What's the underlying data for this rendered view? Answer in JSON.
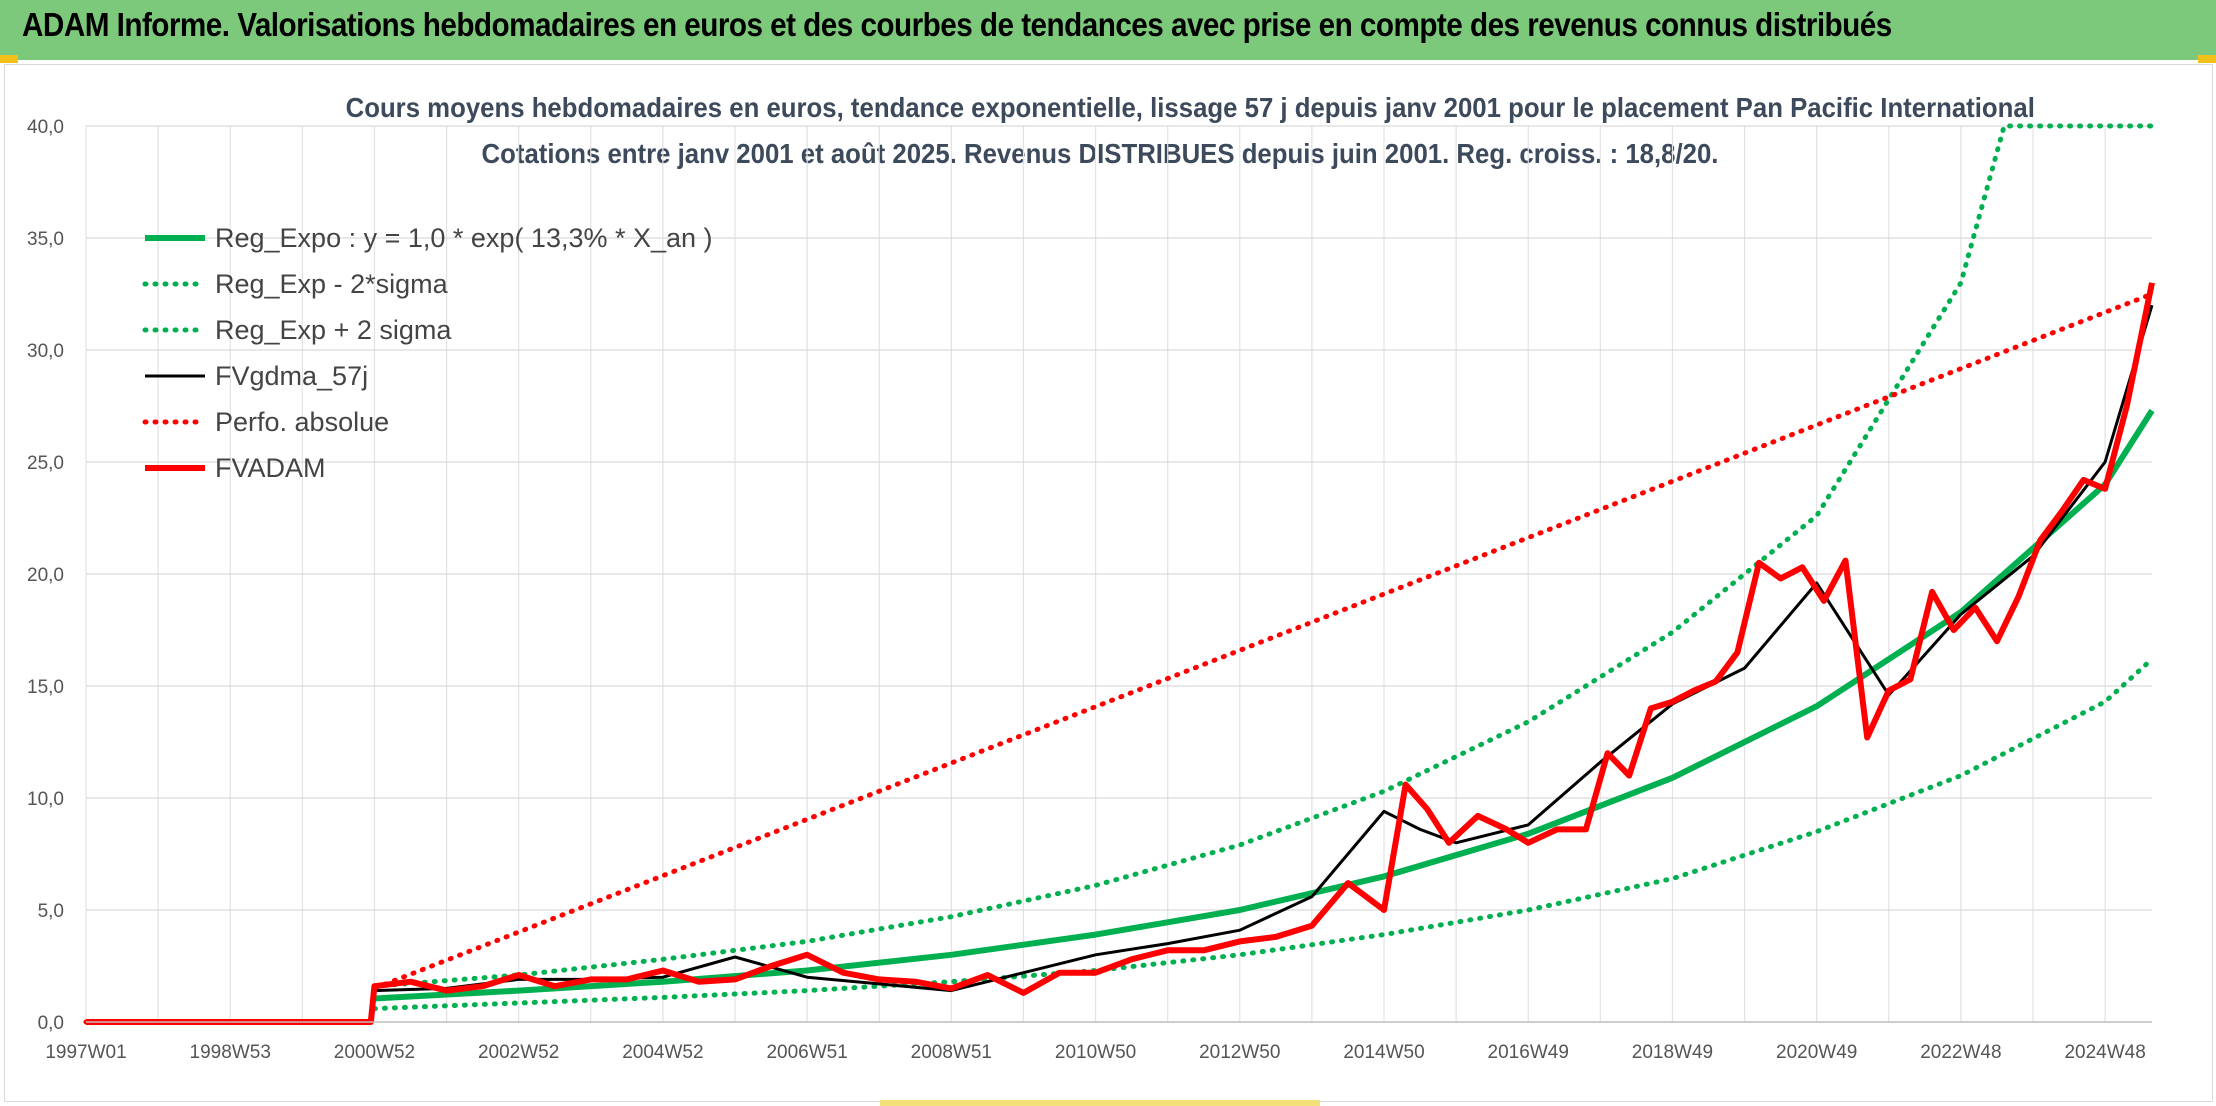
{
  "header": {
    "banner_title": "ADAM Informe. Valorisations hebdomadaires en euros et des courbes de tendances avec prise en compte des revenus connus distribués"
  },
  "colors": {
    "banner": "#7dc97b",
    "reg_expo": "#00b050",
    "fvgdma": "#000000",
    "fvadam": "#ff0000",
    "grid": "#d9d9d9"
  },
  "chart_data": {
    "type": "line",
    "title_line1": "Cours moyens hebdomadaires en euros, tendance exponentielle, lissage 57 j depuis janv 2001 pour le placement Pan Pacific International",
    "title_line2": "Cotations entre janv 2001 et août 2025. Revenus DISTRIBUES depuis juin 2001. Reg. croiss. : 18,8/20.",
    "xlabel": "",
    "ylabel": "",
    "ylim": [
      0,
      40
    ],
    "y_ticks": [
      "0,0",
      "5,0",
      "10,0",
      "15,0",
      "20,0",
      "25,0",
      "30,0",
      "35,0",
      "40,0"
    ],
    "x_range_years": [
      1997.0,
      2025.65
    ],
    "x_ticks": [
      {
        "label": "1997W01",
        "year": 1997.0
      },
      {
        "label": "1998W53",
        "year": 1999.0
      },
      {
        "label": "2000W52",
        "year": 2001.0
      },
      {
        "label": "2002W52",
        "year": 2003.0
      },
      {
        "label": "2004W52",
        "year": 2005.0
      },
      {
        "label": "2006W51",
        "year": 2007.0
      },
      {
        "label": "2008W51",
        "year": 2009.0
      },
      {
        "label": "2010W50",
        "year": 2011.0
      },
      {
        "label": "2012W50",
        "year": 2013.0
      },
      {
        "label": "2014W50",
        "year": 2015.0
      },
      {
        "label": "2016W49",
        "year": 2017.0
      },
      {
        "label": "2018W49",
        "year": 2019.0
      },
      {
        "label": "2020W49",
        "year": 2021.0
      },
      {
        "label": "2022W48",
        "year": 2023.0
      },
      {
        "label": "2024W48",
        "year": 2025.0
      }
    ],
    "grid": true,
    "legend_position": "top-left",
    "series": [
      {
        "name": "Reg_Expo : y = 1,0 * exp( 13,3% *  X_an )",
        "style": "solid-thick",
        "color": "#00b050",
        "x": [
          2001.0,
          2003.0,
          2005.0,
          2007.0,
          2009.0,
          2011.0,
          2013.0,
          2015.0,
          2017.0,
          2019.0,
          2021.0,
          2023.0,
          2025.0,
          2025.65
        ],
        "values": [
          1.05,
          1.4,
          1.8,
          2.3,
          3.0,
          3.9,
          5.0,
          6.5,
          8.4,
          10.9,
          14.1,
          18.3,
          24.0,
          27.3
        ]
      },
      {
        "name": "Reg_Exp - 2*sigma",
        "style": "dotted",
        "color": "#00b050",
        "x": [
          2001.0,
          2003.0,
          2005.0,
          2007.0,
          2009.0,
          2011.0,
          2013.0,
          2015.0,
          2017.0,
          2019.0,
          2021.0,
          2023.0,
          2025.0,
          2025.65
        ],
        "values": [
          0.6,
          0.85,
          1.1,
          1.4,
          1.8,
          2.3,
          3.0,
          3.9,
          5.0,
          6.4,
          8.5,
          11.0,
          14.3,
          16.2
        ]
      },
      {
        "name": "Reg_Exp + 2 sigma",
        "style": "dotted",
        "color": "#00b050",
        "x": [
          2001.0,
          2003.0,
          2005.0,
          2007.0,
          2009.0,
          2011.0,
          2013.0,
          2015.0,
          2017.0,
          2019.0,
          2021.0,
          2023.0,
          2023.6,
          2025.65
        ],
        "values": [
          1.6,
          2.1,
          2.8,
          3.6,
          4.7,
          6.1,
          7.9,
          10.3,
          13.4,
          17.4,
          22.6,
          33.0,
          40.0,
          40.0
        ]
      },
      {
        "name": "FVgdma_57j",
        "style": "solid",
        "color": "#000000",
        "x": [
          2001.0,
          2002.0,
          2003.0,
          2004.0,
          2005.0,
          2006.0,
          2007.0,
          2008.0,
          2009.0,
          2010.0,
          2011.0,
          2012.0,
          2013.0,
          2014.0,
          2015.0,
          2015.5,
          2016.0,
          2017.0,
          2018.0,
          2019.0,
          2020.0,
          2021.0,
          2022.0,
          2023.0,
          2024.0,
          2025.0,
          2025.65
        ],
        "values": [
          1.4,
          1.5,
          1.9,
          1.9,
          2.0,
          2.9,
          2.0,
          1.7,
          1.4,
          2.2,
          3.0,
          3.5,
          4.1,
          5.6,
          9.4,
          8.6,
          8.0,
          8.8,
          11.6,
          14.2,
          15.8,
          19.6,
          14.6,
          18.2,
          20.8,
          25.0,
          32.0
        ]
      },
      {
        "name": "Perfo. absolue",
        "style": "dotted",
        "color": "#ff0000",
        "x": [
          1997.0,
          2000.95,
          2001.0,
          2025.65
        ],
        "values": [
          0.0,
          0.0,
          1.5,
          32.5
        ]
      },
      {
        "name": "FVADAM",
        "style": "solid-thick",
        "color": "#ff0000",
        "x": [
          1997.0,
          2000.95,
          2001.0,
          2001.5,
          2002.0,
          2002.5,
          2003.0,
          2003.5,
          2004.0,
          2004.5,
          2005.0,
          2005.5,
          2006.0,
          2006.5,
          2007.0,
          2007.5,
          2008.0,
          2008.5,
          2009.0,
          2009.5,
          2010.0,
          2010.5,
          2011.0,
          2011.5,
          2012.0,
          2012.5,
          2013.0,
          2013.5,
          2014.0,
          2014.5,
          2015.0,
          2015.3,
          2015.6,
          2015.9,
          2016.3,
          2016.7,
          2017.0,
          2017.4,
          2017.8,
          2018.1,
          2018.4,
          2018.7,
          2019.0,
          2019.3,
          2019.6,
          2019.9,
          2020.2,
          2020.5,
          2020.8,
          2021.1,
          2021.4,
          2021.7,
          2022.0,
          2022.3,
          2022.6,
          2022.9,
          2023.2,
          2023.5,
          2023.8,
          2024.1,
          2024.4,
          2024.7,
          2025.0,
          2025.3,
          2025.65
        ],
        "values": [
          0.0,
          0.0,
          1.6,
          1.8,
          1.4,
          1.6,
          2.1,
          1.6,
          1.9,
          1.9,
          2.3,
          1.8,
          1.9,
          2.5,
          3.0,
          2.2,
          1.9,
          1.8,
          1.5,
          2.1,
          1.3,
          2.2,
          2.2,
          2.8,
          3.2,
          3.2,
          3.6,
          3.8,
          4.3,
          6.2,
          5.0,
          10.6,
          9.5,
          8.0,
          9.2,
          8.6,
          8.0,
          8.6,
          8.6,
          12.0,
          11.0,
          14.0,
          14.3,
          14.8,
          15.2,
          16.5,
          20.5,
          19.8,
          20.3,
          18.8,
          20.6,
          12.7,
          14.8,
          15.3,
          19.2,
          17.5,
          18.5,
          17.0,
          19.0,
          21.5,
          22.8,
          24.2,
          23.8,
          27.5,
          33.0
        ]
      }
    ]
  }
}
